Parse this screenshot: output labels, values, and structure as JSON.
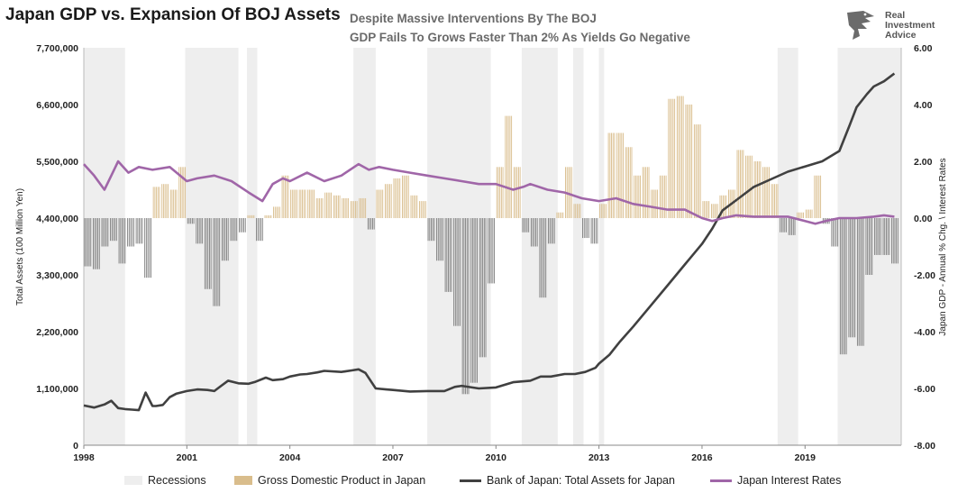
{
  "header": {
    "title": "Japan GDP vs. Expansion Of BOJ Assets",
    "subtitle_line1": "Despite Massive Interventions By The BOJ",
    "subtitle_line2": "GDP Fails To Grows Faster Than 2% As Yields Go Negative"
  },
  "logo": {
    "name": "eagle-icon",
    "line1": "Real",
    "line2": "Investment",
    "line3": "Advice"
  },
  "colors": {
    "recession": "#eeeeee",
    "gdp": "#d9bd8c",
    "gdp_edge": "#c29a5e",
    "assets": "#404040",
    "rates": "#a066a8",
    "negative_bars": "#7f7f7f"
  },
  "chart_data": {
    "type": "bar+line",
    "ylabel_left": "Total Assets (100 Million Yen)",
    "ylabel_right": "Japan GDP - Annual % Chg. \\ Interest Rates",
    "ylim_left": [
      0,
      7700000
    ],
    "ylim_right": [
      -8,
      6
    ],
    "xlim": [
      1998.0,
      2021.8
    ],
    "left_ticks": [
      "0",
      "1,100,000",
      "2,200,000",
      "3,300,000",
      "4,400,000",
      "5,500,000",
      "6,600,000",
      "7,700,000"
    ],
    "left_tick_values": [
      0,
      1100000,
      2200000,
      3300000,
      4400000,
      5500000,
      6600000,
      7700000
    ],
    "right_ticks": [
      "-8.00",
      "-6.00",
      "-4.00",
      "-2.00",
      "0.00",
      "2.00",
      "4.00",
      "6.00"
    ],
    "right_tick_values": [
      -8,
      -6,
      -4,
      -2,
      0,
      2,
      4,
      6
    ],
    "x_ticks": [
      "1998",
      "2001",
      "2004",
      "2007",
      "2010",
      "2013",
      "2016",
      "2019"
    ],
    "x_tick_values": [
      1998,
      2001,
      2004,
      2007,
      2010,
      2013,
      2016,
      2019
    ],
    "legend_position": "bottom",
    "legend": [
      "Recessions",
      "Gross Domestic Product in Japan",
      "Bank of Japan: Total Assets for Japan",
      "Japan Interest Rates"
    ],
    "recessions": [
      [
        1998.0,
        1999.2
      ],
      [
        2000.95,
        2002.5
      ],
      [
        2002.75,
        2003.05
      ],
      [
        2005.85,
        2006.5
      ],
      [
        2008.0,
        2009.85
      ],
      [
        2010.75,
        2011.8
      ],
      [
        2012.25,
        2012.55
      ],
      [
        2013.0,
        2013.15
      ],
      [
        2018.2,
        2018.8
      ],
      [
        2019.95,
        2021.8
      ]
    ],
    "series": [
      {
        "name": "Gross Domestic Product in Japan",
        "axis": "right",
        "x": [
          1998.0,
          1998.25,
          1998.5,
          1998.75,
          1999.0,
          1999.25,
          1999.5,
          1999.75,
          2000.0,
          2000.25,
          2000.5,
          2000.75,
          2001.0,
          2001.25,
          2001.5,
          2001.75,
          2002.0,
          2002.25,
          2002.5,
          2002.75,
          2003.0,
          2003.25,
          2003.5,
          2003.75,
          2004.0,
          2004.25,
          2004.5,
          2004.75,
          2005.0,
          2005.25,
          2005.5,
          2005.75,
          2006.0,
          2006.25,
          2006.5,
          2006.75,
          2007.0,
          2007.25,
          2007.5,
          2007.75,
          2008.0,
          2008.25,
          2008.5,
          2008.75,
          2009.0,
          2009.25,
          2009.5,
          2009.75,
          2010.0,
          2010.25,
          2010.5,
          2010.75,
          2011.0,
          2011.25,
          2011.5,
          2011.75,
          2012.0,
          2012.25,
          2012.5,
          2012.75,
          2013.0,
          2013.25,
          2013.5,
          2013.75,
          2014.0,
          2014.25,
          2014.5,
          2014.75,
          2015.0,
          2015.25,
          2015.5,
          2015.75,
          2016.0,
          2016.25,
          2016.5,
          2016.75,
          2017.0,
          2017.25,
          2017.5,
          2017.75,
          2018.0,
          2018.25,
          2018.5,
          2018.75,
          2019.0,
          2019.25,
          2019.5,
          2019.75,
          2020.0,
          2020.25,
          2020.5,
          2020.75,
          2021.0,
          2021.25,
          2021.5
        ],
        "values": [
          -1.7,
          -1.8,
          -1.0,
          -0.8,
          -1.6,
          -1.0,
          -0.9,
          -2.1,
          1.1,
          1.2,
          1.0,
          1.8,
          -0.2,
          -0.9,
          -2.5,
          -3.1,
          -1.5,
          -0.8,
          -0.5,
          0.1,
          -0.8,
          0.1,
          0.4,
          1.5,
          1.0,
          1.0,
          1.0,
          0.7,
          0.9,
          0.8,
          0.7,
          0.6,
          0.7,
          -0.4,
          1.0,
          1.2,
          1.4,
          1.5,
          0.8,
          0.6,
          -0.8,
          -1.5,
          -2.6,
          -3.8,
          -6.2,
          -5.8,
          -4.9,
          -2.3,
          1.8,
          3.6,
          1.8,
          -0.5,
          -1.0,
          -2.8,
          -0.9,
          0.2,
          1.8,
          0.5,
          -0.7,
          -0.9,
          0.5,
          3.0,
          3.0,
          2.5,
          1.5,
          1.8,
          1.0,
          1.5,
          4.2,
          4.3,
          4.0,
          3.3,
          0.6,
          0.5,
          0.8,
          1.0,
          2.4,
          2.2,
          2.0,
          1.8,
          1.2,
          -0.5,
          -0.6,
          0.2,
          0.3,
          1.5,
          -0.2,
          -1.0,
          -4.8,
          -4.2,
          -4.5,
          -2.0,
          -1.3,
          -1.3,
          -1.6
        ]
      },
      {
        "name": "Bank of Japan: Total Assets for Japan",
        "axis": "left",
        "x": [
          1998.0,
          1998.3,
          1998.6,
          1998.8,
          1999.0,
          1999.2,
          1999.4,
          1999.6,
          1999.8,
          2000.0,
          2000.1,
          2000.3,
          2000.5,
          2000.7,
          2001.0,
          2001.3,
          2001.6,
          2001.8,
          2002.0,
          2002.2,
          2002.5,
          2002.8,
          2003.0,
          2003.3,
          2003.5,
          2003.8,
          2004.0,
          2004.3,
          2004.5,
          2004.8,
          2005.0,
          2005.5,
          2005.8,
          2006.0,
          2006.2,
          2006.5,
          2006.8,
          2007.0,
          2007.5,
          2008.0,
          2008.5,
          2008.8,
          2009.0,
          2009.5,
          2010.0,
          2010.5,
          2011.0,
          2011.3,
          2011.6,
          2012.0,
          2012.3,
          2012.6,
          2012.9,
          2013.0,
          2013.3,
          2013.6,
          2014.0,
          2014.5,
          2015.0,
          2015.5,
          2016.0,
          2016.3,
          2016.6,
          2017.0,
          2017.5,
          2018.0,
          2018.5,
          2019.0,
          2019.5,
          2020.0,
          2020.3,
          2020.5,
          2020.8,
          2021.0,
          2021.3,
          2021.6
        ],
        "values": [
          770000,
          730000,
          790000,
          860000,
          720000,
          700000,
          690000,
          680000,
          1020000,
          760000,
          760000,
          780000,
          930000,
          1000000,
          1050000,
          1080000,
          1070000,
          1050000,
          1150000,
          1250000,
          1200000,
          1190000,
          1230000,
          1310000,
          1260000,
          1280000,
          1330000,
          1370000,
          1380000,
          1410000,
          1440000,
          1420000,
          1450000,
          1470000,
          1400000,
          1100000,
          1080000,
          1070000,
          1040000,
          1050000,
          1050000,
          1130000,
          1150000,
          1100000,
          1120000,
          1220000,
          1250000,
          1330000,
          1330000,
          1380000,
          1380000,
          1420000,
          1500000,
          1580000,
          1750000,
          2000000,
          2300000,
          2700000,
          3100000,
          3500000,
          3900000,
          4200000,
          4550000,
          4750000,
          5000000,
          5150000,
          5300000,
          5400000,
          5500000,
          5700000,
          6200000,
          6550000,
          6800000,
          6950000,
          7050000,
          7200000
        ]
      },
      {
        "name": "Japan Interest Rates",
        "axis": "right",
        "x": [
          1998.0,
          1998.3,
          1998.6,
          1998.8,
          1999.0,
          1999.3,
          1999.6,
          2000.0,
          2000.5,
          2001.0,
          2001.3,
          2001.8,
          2002.3,
          2002.8,
          2003.2,
          2003.5,
          2003.8,
          2004.0,
          2004.5,
          2005.0,
          2005.5,
          2006.0,
          2006.3,
          2006.6,
          2007.0,
          2007.5,
          2008.0,
          2008.5,
          2009.0,
          2009.5,
          2010.0,
          2010.5,
          2010.8,
          2011.0,
          2011.5,
          2012.0,
          2012.5,
          2013.0,
          2013.5,
          2014.0,
          2014.5,
          2015.0,
          2015.5,
          2016.0,
          2016.3,
          2016.6,
          2017.0,
          2017.5,
          2018.0,
          2018.5,
          2019.0,
          2019.3,
          2019.6,
          2020.0,
          2020.5,
          2021.0,
          2021.3,
          2021.6
        ],
        "values": [
          1.9,
          1.5,
          1.0,
          1.5,
          2.0,
          1.6,
          1.8,
          1.7,
          1.8,
          1.3,
          1.4,
          1.5,
          1.3,
          0.9,
          0.6,
          1.2,
          1.4,
          1.3,
          1.6,
          1.3,
          1.5,
          1.9,
          1.7,
          1.8,
          1.7,
          1.6,
          1.5,
          1.4,
          1.3,
          1.2,
          1.2,
          1.0,
          1.1,
          1.2,
          1.0,
          0.9,
          0.7,
          0.6,
          0.7,
          0.5,
          0.4,
          0.3,
          0.3,
          0.0,
          -0.1,
          0.0,
          0.1,
          0.05,
          0.05,
          0.05,
          -0.1,
          -0.2,
          -0.1,
          0.0,
          0.0,
          0.05,
          0.1,
          0.05
        ]
      }
    ]
  }
}
